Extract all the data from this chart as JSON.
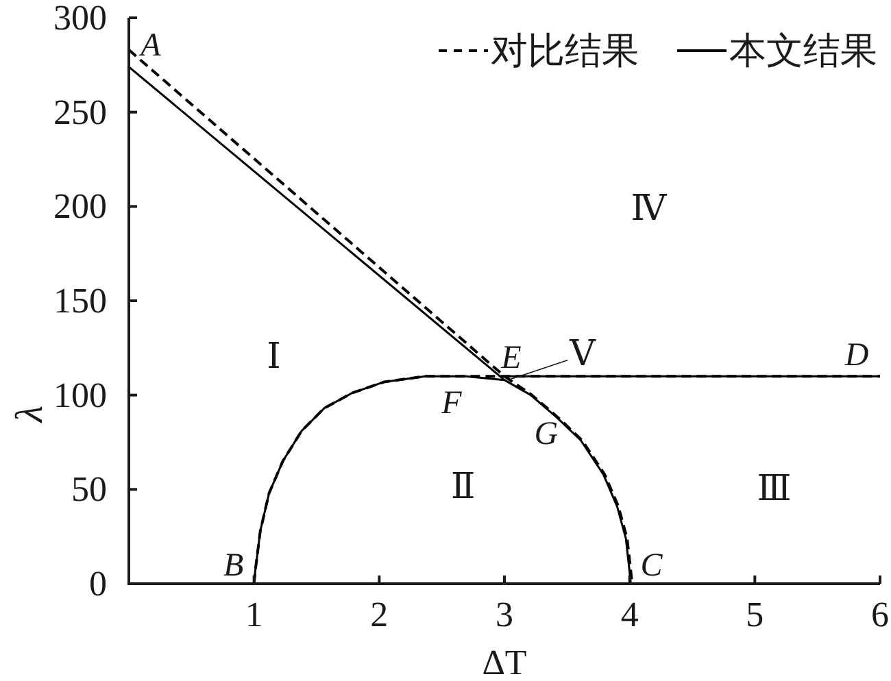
{
  "chart_data": {
    "type": "line",
    "xlabel": "ΔT",
    "ylabel": "λ",
    "xlim": [
      0,
      6
    ],
    "ylim": [
      0,
      300
    ],
    "xticks": [
      1,
      2,
      3,
      4,
      5,
      6
    ],
    "yticks": [
      0,
      50,
      100,
      150,
      200,
      250,
      300
    ],
    "legend": "top right",
    "series": [
      {
        "name": "对比结果",
        "color": "#000000",
        "line_style": "dashed",
        "x": [
          0,
          3.0
        ],
        "values": [
          283,
          110
        ]
      },
      {
        "color": "#000000",
        "line_style": "dashed",
        "x": [
          1.0,
          1.01,
          1.05,
          1.12,
          1.23,
          1.38,
          1.56,
          1.78,
          2.04,
          2.37,
          6
        ],
        "values": [
          0,
          7,
          28,
          48,
          65,
          81,
          93,
          101,
          107,
          110,
          110
        ]
      },
      {
        "color": "#000000",
        "line_style": "dashed",
        "x": [
          3.0,
          3.22,
          3.43,
          3.62,
          3.8,
          3.91,
          3.98,
          4.02
        ],
        "values": [
          110,
          100,
          88,
          76,
          58,
          41,
          24,
          0
        ]
      },
      {
        "name": "本文结果",
        "color": "#000000",
        "line_style": "solid",
        "x": [
          0,
          3.0
        ],
        "values": [
          274,
          108
        ]
      },
      {
        "color": "#000000",
        "line_style": "solid",
        "x": [
          1.0,
          1.01,
          1.05,
          1.12,
          1.23,
          1.38,
          1.56,
          1.78,
          2.04,
          2.37,
          2.69,
          3.0,
          3.21,
          3.42,
          3.61,
          3.79,
          3.9,
          3.97,
          4.01
        ],
        "values": [
          0,
          7,
          28,
          48,
          65,
          81,
          93,
          101,
          107,
          110,
          110,
          108,
          100,
          88,
          76,
          58,
          41,
          24,
          0
        ]
      },
      {
        "color": "#000000",
        "line_style": "solid",
        "x": [
          3.0,
          6
        ],
        "values": [
          110,
          110
        ]
      }
    ],
    "annotations": [
      {
        "text": "A",
        "x": 0,
        "y": 283
      },
      {
        "text": "B",
        "x": 1,
        "y": 0
      },
      {
        "text": "C",
        "x": 4.01,
        "y": 0
      },
      {
        "text": "D",
        "x": 6,
        "y": 110
      },
      {
        "text": "E",
        "x": 3.0,
        "y": 110
      },
      {
        "text": "F",
        "x": 2.37,
        "y": 110
      },
      {
        "text": "G",
        "x": 3.42,
        "y": 88
      },
      "Ⅰ",
      "Ⅱ",
      "Ⅲ",
      "Ⅳ",
      "Ⅴ"
    ]
  }
}
